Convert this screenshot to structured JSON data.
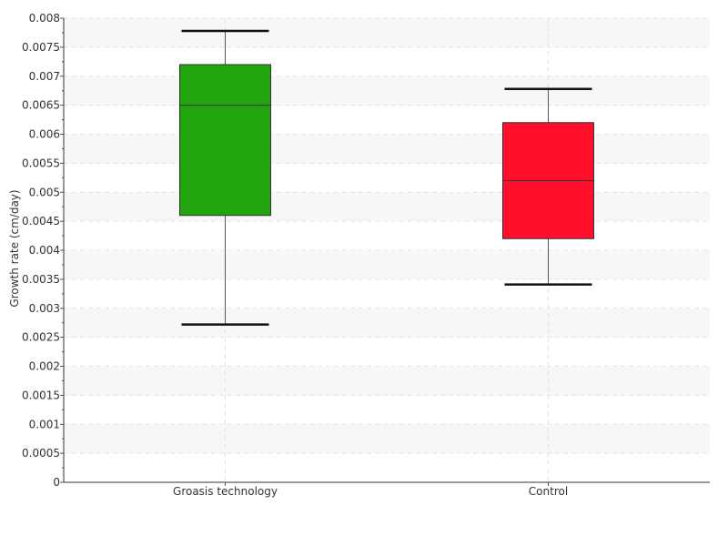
{
  "chart_data": {
    "type": "box",
    "ylabel": "Growth rate (cm/day)",
    "ylim": [
      0,
      0.008
    ],
    "y_ticks": [
      "0",
      "0.0005",
      "0.001",
      "0.0015",
      "0.002",
      "0.0025",
      "0.003",
      "0.0035",
      "0.004",
      "0.0045",
      "0.005",
      "0.0055",
      "0.006",
      "0.0065",
      "0.007",
      "0.0075",
      "0.008"
    ],
    "grid": true,
    "categories": [
      "Groasis technology",
      "Control"
    ],
    "series": [
      {
        "category": "Groasis technology",
        "color": "#22a40e",
        "whisker_low": 0.00272,
        "q1": 0.0046,
        "median": 0.0065,
        "q3": 0.0072,
        "whisker_high": 0.00778
      },
      {
        "category": "Control",
        "color": "#ff0f2b",
        "whisker_low": 0.00341,
        "q1": 0.0042,
        "median": 0.0052,
        "q3": 0.0062,
        "whisker_high": 0.00678
      }
    ]
  }
}
